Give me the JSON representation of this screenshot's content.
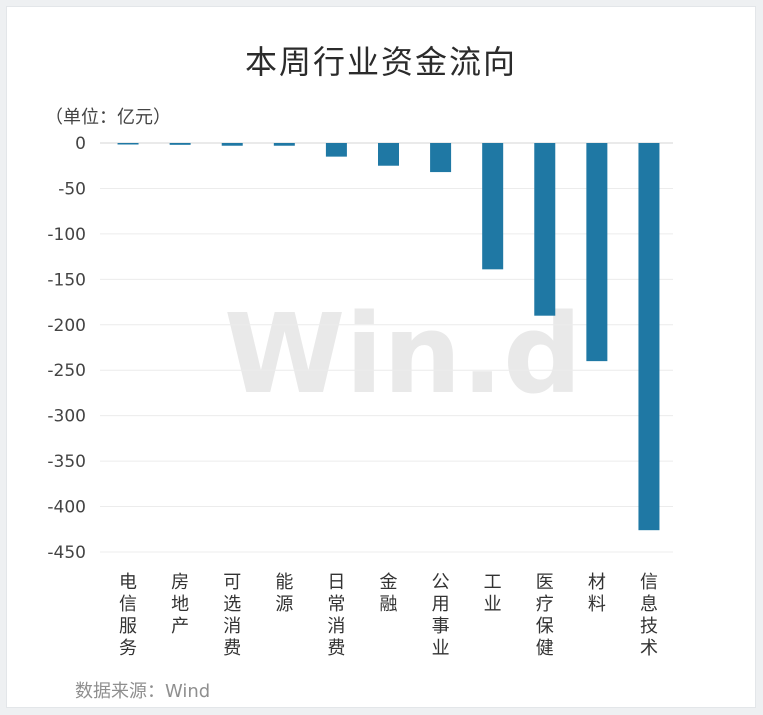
{
  "chart_data": {
    "type": "bar",
    "title": "本周行业资金流向",
    "unit_label": "（单位：亿元）",
    "source": "数据来源：Wind",
    "watermark": "Win.d",
    "categories": [
      "电信服务",
      "房地产",
      "可选消费",
      "能源",
      "日常消费",
      "金融",
      "公用事业",
      "工业",
      "医疗保健",
      "材料",
      "信息技术"
    ],
    "values": [
      -1,
      -2,
      -3,
      -3,
      -15,
      -25,
      -32,
      -139,
      -190,
      -240,
      -426
    ],
    "ylim": [
      -450,
      0
    ],
    "yticks": [
      "0",
      "-50",
      "-100",
      "-150",
      "-200",
      "-250",
      "-300",
      "-350",
      "-400",
      "-450"
    ],
    "grid": true,
    "bar_color": "#1f78a4"
  }
}
